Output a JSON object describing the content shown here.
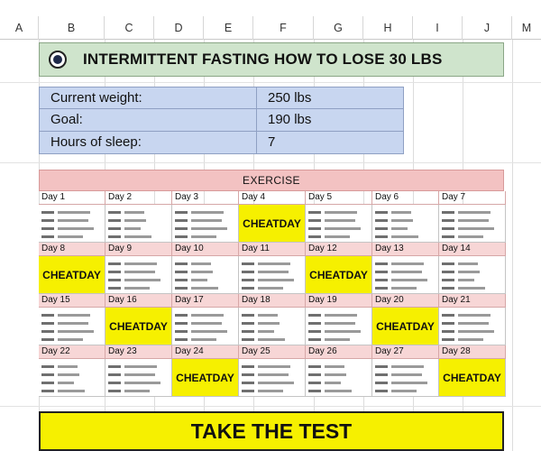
{
  "columns": [
    "A",
    "B",
    "C",
    "D",
    "E",
    "F",
    "G",
    "H",
    "I",
    "J",
    "M"
  ],
  "title": "INTERMITTENT FASTING HOW TO LOSE 30 LBS",
  "info": [
    {
      "label": "Current weight:",
      "value": "250 lbs"
    },
    {
      "label": "Goal:",
      "value": "190 lbs"
    },
    {
      "label": "Hours of sleep:",
      "value": "7"
    }
  ],
  "exercise_label": "EXERCISE",
  "cheat_label": [
    "CHEAT",
    "DAY"
  ],
  "weeks": [
    {
      "days": [
        "Day 1",
        "Day 2",
        "Day 3",
        "Day 4",
        "Day 5",
        "Day 6",
        "Day 7"
      ],
      "cheat": [
        false,
        false,
        false,
        true,
        false,
        false,
        false
      ]
    },
    {
      "days": [
        "Day 8",
        "Day 9",
        "Day 10",
        "Day 11",
        "Day 12",
        "Day 13",
        "Day 14"
      ],
      "cheat": [
        true,
        false,
        false,
        false,
        true,
        false,
        false
      ]
    },
    {
      "days": [
        "Day 15",
        "Day 16",
        "Day 17",
        "Day 18",
        "Day 19",
        "Day 20",
        "Day 21"
      ],
      "cheat": [
        false,
        true,
        false,
        false,
        false,
        true,
        false
      ]
    },
    {
      "days": [
        "Day 22",
        "Day 23",
        "Day 24",
        "Day 25",
        "Day 26",
        "Day 27",
        "Day 28"
      ],
      "cheat": [
        false,
        false,
        true,
        false,
        false,
        false,
        true
      ]
    }
  ],
  "test_button": "TAKE THE TEST",
  "colors": {
    "title_bg": "#cfe4cc",
    "info_bg": "#c8d6f0",
    "exercise_bg": "#f3c2c2",
    "cheat_bg": "#f6f000",
    "button_bg": "#f6f000"
  }
}
